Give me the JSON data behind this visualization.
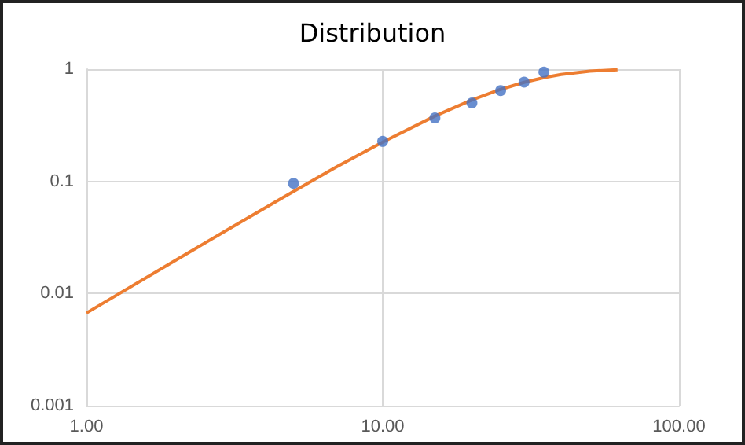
{
  "chart_data": {
    "type": "scatter",
    "title": "Distribution",
    "log": "xy",
    "grid": true,
    "xlim": [
      1,
      100
    ],
    "xticks": [
      {
        "value": 1,
        "label": "1.00"
      },
      {
        "value": 10,
        "label": "10.00"
      },
      {
        "value": 100,
        "label": "100.00"
      }
    ],
    "ylim": [
      0.001,
      1
    ],
    "yticks": [
      1,
      0.1,
      0.01,
      0.001
    ],
    "series": [
      {
        "color": "#4472c4",
        "marker": "circle",
        "x": [
          5,
          10,
          15,
          20,
          25,
          30,
          35
        ],
        "values": [
          0.096,
          0.227,
          0.367,
          0.5,
          0.645,
          0.766,
          0.94
        ]
      },
      {
        "type": "line",
        "color": "#ed7d31",
        "marker": "none",
        "line_style": "solid",
        "x": [
          1,
          2,
          3,
          5,
          7,
          10,
          15,
          20,
          25,
          30,
          35,
          40,
          50,
          62
        ],
        "values": [
          0.0067,
          0.0198,
          0.0372,
          0.0814,
          0.135,
          0.224,
          0.382,
          0.532,
          0.66,
          0.763,
          0.841,
          0.897,
          0.96,
          0.989
        ]
      }
    ]
  }
}
